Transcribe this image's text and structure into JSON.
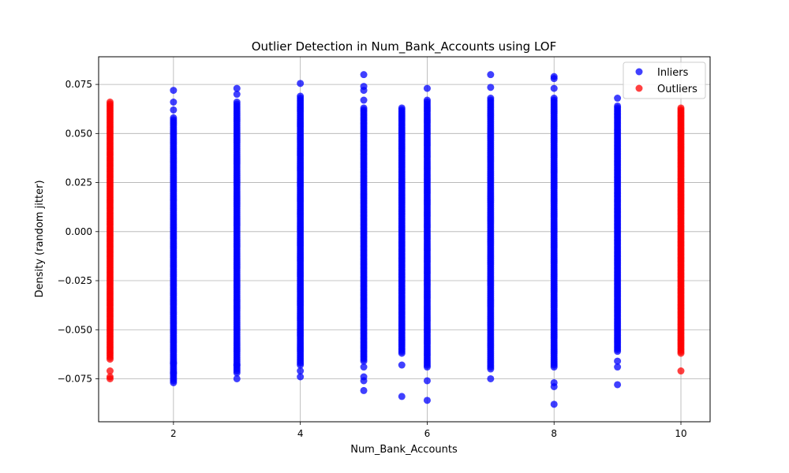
{
  "chart_data": {
    "type": "scatter",
    "title": "Outlier Detection in Num_Bank_Accounts using LOF",
    "xlabel": "Num_Bank_Accounts",
    "ylabel": "Density (random jitter)",
    "xlim": [
      0.82,
      10.46
    ],
    "ylim": [
      -0.0969,
      0.0891
    ],
    "xticks": [
      2,
      4,
      6,
      8,
      10
    ],
    "xtick_labels": [
      "2",
      "4",
      "6",
      "8",
      "10"
    ],
    "yticks": [
      -0.075,
      -0.05,
      -0.025,
      0.0,
      0.025,
      0.05,
      0.075
    ],
    "ytick_labels": [
      "−0.075",
      "−0.050",
      "−0.025",
      "0.000",
      "0.025",
      "0.050",
      "0.075"
    ],
    "grid": true,
    "legend_position": "top-right",
    "series": [
      {
        "name": "Inliers",
        "color": "#0000ff",
        "columns": [
          {
            "x": 2,
            "y_min": -0.077,
            "y_max": 0.058,
            "extra_y": [
              0.072,
              0.066,
              0.062,
              -0.072,
              -0.067
            ]
          },
          {
            "x": 3,
            "y_min": -0.072,
            "y_max": 0.066,
            "extra_y": [
              0.073,
              0.07,
              -0.075,
              -0.068
            ]
          },
          {
            "x": 4,
            "y_min": -0.068,
            "y_max": 0.069,
            "extra_y": [
              0.0755,
              -0.074,
              -0.071
            ]
          },
          {
            "x": 5,
            "y_min": -0.066,
            "y_max": 0.063,
            "extra_y": [
              0.08,
              0.074,
              0.072,
              0.067,
              -0.069,
              -0.074,
              -0.076,
              -0.081
            ]
          },
          {
            "x": 5.6,
            "y_min": -0.062,
            "y_max": 0.063,
            "extra_y": [
              -0.068,
              -0.084
            ]
          },
          {
            "x": 6,
            "y_min": -0.069,
            "y_max": 0.067,
            "extra_y": [
              0.073,
              -0.076,
              -0.086
            ]
          },
          {
            "x": 7,
            "y_min": -0.07,
            "y_max": 0.068,
            "extra_y": [
              0.08,
              0.0735,
              -0.075
            ]
          },
          {
            "x": 8,
            "y_min": -0.069,
            "y_max": 0.068,
            "extra_y": [
              0.079,
              0.078,
              0.073,
              -0.077,
              -0.079,
              -0.088
            ]
          },
          {
            "x": 9,
            "y_min": -0.061,
            "y_max": 0.064,
            "extra_y": [
              0.068,
              -0.066,
              -0.069,
              -0.078
            ]
          }
        ]
      },
      {
        "name": "Outliers",
        "color": "#ff0000",
        "columns": [
          {
            "x": 1,
            "y_min": -0.065,
            "y_max": 0.066,
            "extra_y": [
              -0.071,
              -0.074,
              -0.075
            ]
          },
          {
            "x": 10,
            "y_min": -0.062,
            "y_max": 0.063,
            "extra_y": [
              -0.071
            ]
          }
        ]
      }
    ]
  }
}
